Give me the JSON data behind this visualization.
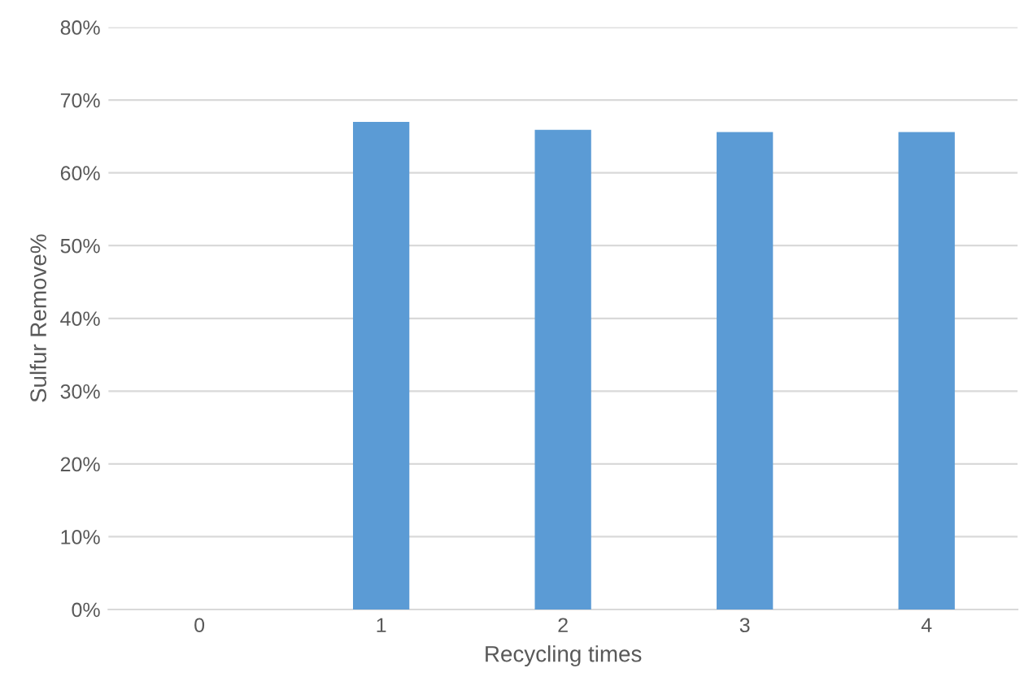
{
  "chart_data": {
    "type": "bar",
    "xlabel": "Recycling times",
    "ylabel": "Sulfur Remove%",
    "categories": [
      "0",
      "1",
      "2",
      "3",
      "4"
    ],
    "values": [
      0,
      67,
      65.9,
      65.6,
      65.6
    ],
    "color": "#5b9bd5",
    "ylim": [
      0,
      80
    ],
    "yticks": [
      {
        "value": 0,
        "label": "0%"
      },
      {
        "value": 10,
        "label": "10%"
      },
      {
        "value": 20,
        "label": "20%"
      },
      {
        "value": 30,
        "label": "30%"
      },
      {
        "value": 40,
        "label": "40%"
      },
      {
        "value": 50,
        "label": "50%"
      },
      {
        "value": 60,
        "label": "60%"
      },
      {
        "value": 70,
        "label": "70%"
      },
      {
        "value": 80,
        "label": "80%"
      }
    ],
    "grid": "y"
  }
}
